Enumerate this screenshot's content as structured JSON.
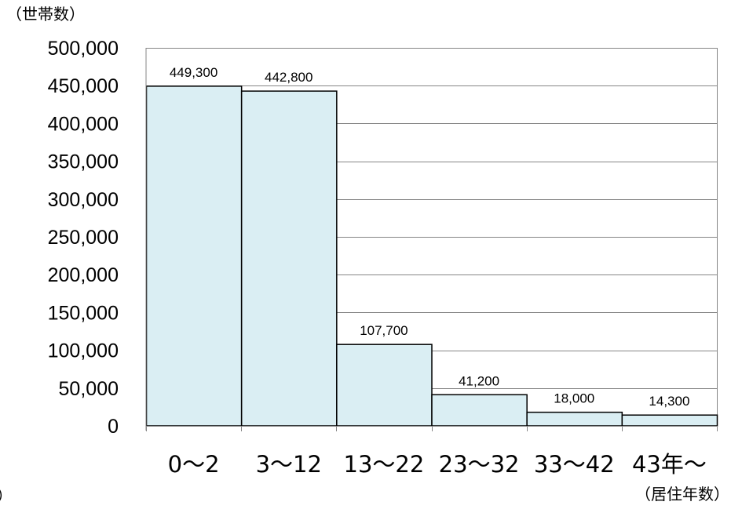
{
  "chart_data": {
    "type": "bar",
    "ylabel": "（世帯数）",
    "xlabel": "（居住年数）",
    "stray_text": "）",
    "categories": [
      "0～2",
      "3～12",
      "13～22",
      "23～32",
      "33～42",
      "43年～"
    ],
    "values": [
      449300,
      442800,
      107700,
      41200,
      18000,
      14300
    ],
    "data_labels": [
      "449,300",
      "442,800",
      "107,700",
      "41,200",
      "18,000",
      "14,300"
    ],
    "y_ticks": [
      "0",
      "50,000",
      "100,000",
      "150,000",
      "200,000",
      "250,000",
      "300,000",
      "350,000",
      "400,000",
      "450,000",
      "500,000"
    ],
    "ylim": [
      0,
      500000
    ],
    "grid": true,
    "legend": "none",
    "bar_color": "#daeef3",
    "bar_stroke": "#000000",
    "grid_color": "#868686"
  }
}
